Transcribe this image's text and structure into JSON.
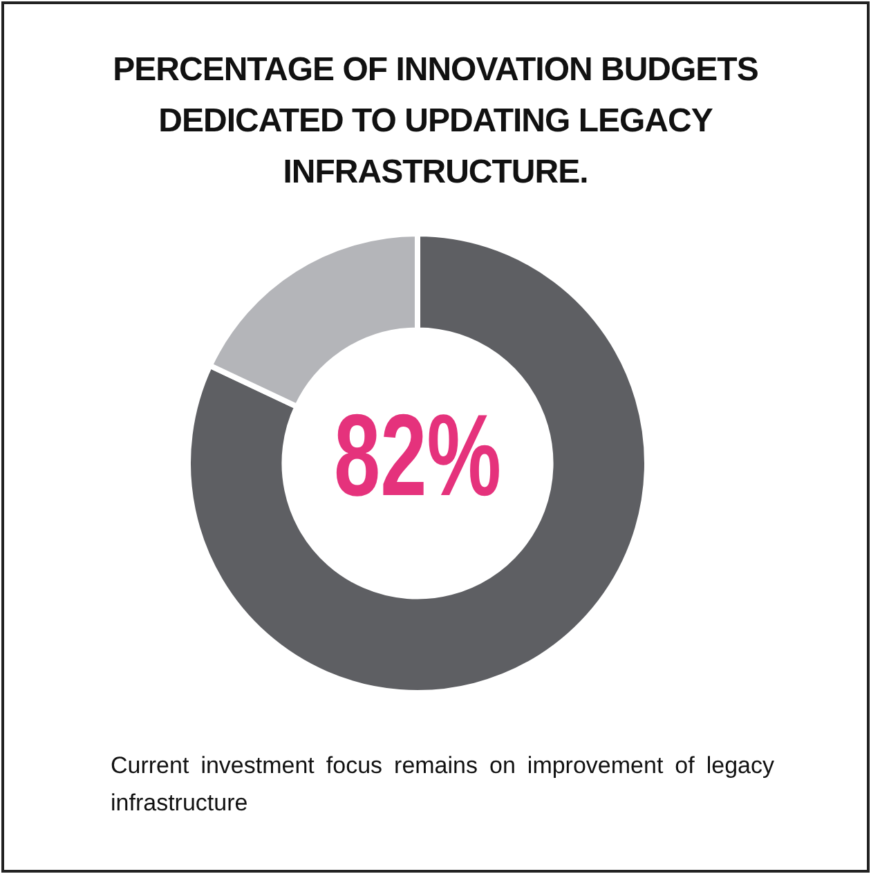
{
  "chart_data": {
    "type": "donut",
    "title": "PERCENTAGE OF INNOVATION BUDGETS DEDICATED TO UPDATING LEGACY INFRASTRUCTURE.",
    "categories": [
      null,
      null
    ],
    "values": [
      82,
      18
    ],
    "colors": [
      "#5e5f63",
      "#b4b5b9"
    ],
    "value_labels": [
      "82%",
      null
    ],
    "annotations": [
      "Current investment focus remains on improvement of legacy infrastructure"
    ]
  }
}
